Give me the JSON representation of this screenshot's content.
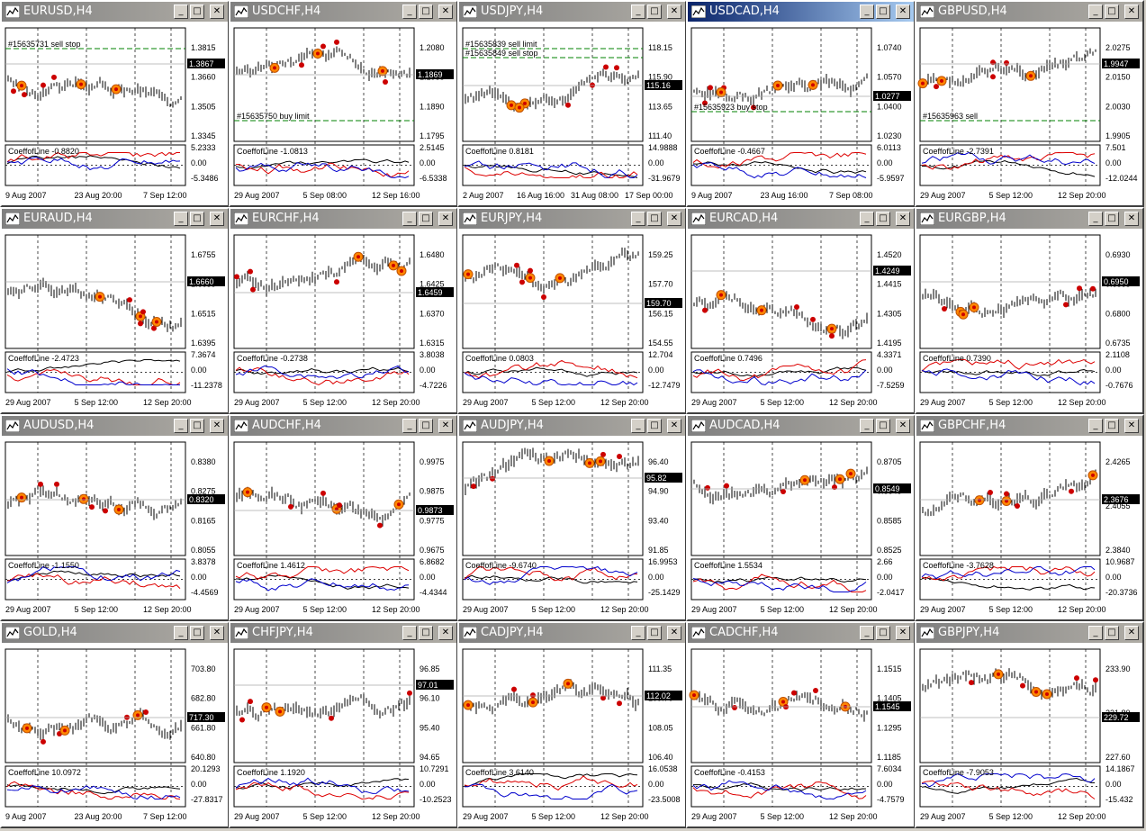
{
  "charts": [
    {
      "title": "EURUSD,H4",
      "active": false,
      "price_ticks": [
        "1.3815",
        "1.3660",
        "1.3505",
        "1.3345"
      ],
      "price_badge": "1.3867",
      "ind_ticks": [
        "5.2333",
        "0.00",
        "-5.3486"
      ],
      "ind_label": "CoeffofLine -0.8820",
      "dates": [
        "9 Aug 2007",
        "23 Aug 20:00",
        "7 Sep 12:00"
      ],
      "order_labels": [
        "#15635731 sell stop"
      ]
    },
    {
      "title": "USDCHF,H4",
      "active": false,
      "price_ticks": [
        "1.2080",
        "1.1985",
        "1.1890",
        "1.1795"
      ],
      "price_badge": "1.1869",
      "ind_ticks": [
        "2.5145",
        "0.00",
        "-6.5338"
      ],
      "ind_label": "CoeffofLine -1.0813",
      "dates": [
        "29 Aug 2007",
        "5 Sep 08:00",
        "12 Sep 16:00"
      ],
      "order_labels": [
        "#15635750 buy limit"
      ]
    },
    {
      "title": "USDJPY,H4",
      "active": false,
      "price_ticks": [
        "118.15",
        "115.90",
        "113.65",
        "111.40"
      ],
      "price_badge": "115.16",
      "ind_ticks": [
        "14.9888",
        "0.00",
        "-31.9679"
      ],
      "ind_label": "CoeffofLine 0.8181",
      "dates": [
        "2 Aug 2007",
        "16 Aug 16:00",
        "31 Aug 08:00",
        "17 Sep 00:00"
      ],
      "order_labels": [
        "#15635839 sell limit",
        "#15635849 sell stop"
      ]
    },
    {
      "title": "USDCAD,H4",
      "active": true,
      "price_ticks": [
        "1.0740",
        "1.0570",
        "1.0400",
        "1.0230"
      ],
      "price_badge": "1.0277",
      "ind_ticks": [
        "6.0113",
        "0.00",
        "-5.9597"
      ],
      "ind_label": "CoeffofLine -0.4667",
      "dates": [
        "9 Aug 2007",
        "23 Aug 16:00",
        "7 Sep 08:00"
      ],
      "order_labels": [
        "#15635923 buy stop"
      ]
    },
    {
      "title": "GBPUSD,H4",
      "active": false,
      "price_ticks": [
        "2.0275",
        "2.0150",
        "2.0030",
        "1.9905"
      ],
      "price_badge": "1.9947",
      "ind_ticks": [
        "7.501",
        "0.00",
        "-12.0244"
      ],
      "ind_label": "CoeffofLine -2.7391",
      "dates": [
        "29 Aug 2007",
        "5 Sep 12:00",
        "12 Sep 20:00"
      ],
      "order_labels": [
        "#15635963 sell"
      ]
    },
    {
      "title": "EURAUD,H4",
      "active": false,
      "price_ticks": [
        "1.6755",
        "1.6635",
        "1.6515",
        "1.6395"
      ],
      "price_badge": "1.6660",
      "ind_ticks": [
        "7.3674",
        "0.00",
        "-11.2378"
      ],
      "ind_label": "CoeffofLine -2.4723",
      "dates": [
        "29 Aug 2007",
        "5 Sep 12:00",
        "12 Sep 20:00"
      ],
      "order_labels": []
    },
    {
      "title": "EURCHF,H4",
      "active": false,
      "price_ticks": [
        "1.6480",
        "1.6425",
        "1.6370",
        "1.6315"
      ],
      "price_badge": "1.6459",
      "ind_ticks": [
        "3.8038",
        "0.00",
        "-4.7226"
      ],
      "ind_label": "CoeffofLine -0.2738",
      "dates": [
        "29 Aug 2007",
        "5 Sep 12:00",
        "12 Sep 20:00"
      ],
      "order_labels": []
    },
    {
      "title": "EURJPY,H4",
      "active": false,
      "price_ticks": [
        "159.25",
        "157.70",
        "156.15",
        "154.55"
      ],
      "price_badge": "159.70",
      "ind_ticks": [
        "12.704",
        "0.00",
        "-12.7479"
      ],
      "ind_label": "CoeffofLine 0.0803",
      "dates": [
        "29 Aug 2007",
        "5 Sep 12:00",
        "12 Sep 20:00"
      ],
      "order_labels": []
    },
    {
      "title": "EURCAD,H4",
      "active": false,
      "price_ticks": [
        "1.4520",
        "1.4415",
        "1.4305",
        "1.4195"
      ],
      "price_badge": "1.4249",
      "ind_ticks": [
        "4.3371",
        "0.00",
        "-7.5259"
      ],
      "ind_label": "CoeffofLine 0.7496",
      "dates": [
        "29 Aug 2007",
        "5 Sep 12:00",
        "12 Sep 20:00"
      ],
      "order_labels": []
    },
    {
      "title": "EURGBP,H4",
      "active": false,
      "price_ticks": [
        "0.6930",
        "0.6865",
        "0.6800",
        "0.6735"
      ],
      "price_badge": "0.6950",
      "ind_ticks": [
        "2.1108",
        "0.00",
        "-0.7676"
      ],
      "ind_label": "CoeffofLine 0.7390",
      "dates": [
        "29 Aug 2007",
        "5 Sep 12:00",
        "12 Sep 20:00"
      ],
      "order_labels": []
    },
    {
      "title": "AUDUSD,H4",
      "active": false,
      "price_ticks": [
        "0.8380",
        "0.8275",
        "0.8165",
        "0.8055"
      ],
      "price_badge": "0.8320",
      "ind_ticks": [
        "3.8378",
        "0.00",
        "-4.4569"
      ],
      "ind_label": "CoeffofLine -1.1550",
      "dates": [
        "29 Aug 2007",
        "5 Sep 12:00",
        "12 Sep 20:00"
      ],
      "order_labels": []
    },
    {
      "title": "AUDCHF,H4",
      "active": false,
      "price_ticks": [
        "0.9975",
        "0.9875",
        "0.9775",
        "0.9675"
      ],
      "price_badge": "0.9873",
      "ind_ticks": [
        "6.8682",
        "0.00",
        "-4.4344"
      ],
      "ind_label": "CoeffofLine 1.4612",
      "dates": [
        "29 Aug 2007",
        "5 Sep 12:00",
        "12 Sep 20:00"
      ],
      "order_labels": []
    },
    {
      "title": "AUDJPY,H4",
      "active": false,
      "price_ticks": [
        "96.40",
        "94.90",
        "93.40",
        "91.85"
      ],
      "price_badge": "95.82",
      "ind_ticks": [
        "16.9953",
        "0.00",
        "-25.1429"
      ],
      "ind_label": "CoeffofLine -9.6740",
      "dates": [
        "29 Aug 2007",
        "5 Sep 12:00",
        "12 Sep 20:00"
      ],
      "order_labels": []
    },
    {
      "title": "AUDCAD,H4",
      "active": false,
      "price_ticks": [
        "0.8705",
        "0.8645",
        "0.8585",
        "0.8525"
      ],
      "price_badge": "0.8549",
      "ind_ticks": [
        "2.66",
        "0.00",
        "-2.0417"
      ],
      "ind_label": "CoeffofLine 1.5534",
      "dates": [
        "29 Aug 2007",
        "5 Sep 12:00",
        "12 Sep 20:00"
      ],
      "order_labels": []
    },
    {
      "title": "GBPCHF,H4",
      "active": false,
      "price_ticks": [
        "2.4265",
        "2.4055",
        "2.3840"
      ],
      "price_badge": "2.3676",
      "ind_ticks": [
        "10.9687",
        "0.00",
        "-20.3736"
      ],
      "ind_label": "CoeffofLine -3.7628",
      "dates": [
        "29 Aug 2007",
        "5 Sep 12:00",
        "12 Sep 20:00"
      ],
      "order_labels": []
    },
    {
      "title": "GOLD,H4",
      "active": false,
      "price_ticks": [
        "703.80",
        "682.80",
        "661.80",
        "640.80"
      ],
      "price_badge": "717.30",
      "ind_ticks": [
        "20.1293",
        "0.00",
        "-27.8317"
      ],
      "ind_label": "CoeffofLine 10.0972",
      "dates": [
        "9 Aug 2007",
        "23 Aug 20:00",
        "7 Sep 12:00"
      ],
      "order_labels": []
    },
    {
      "title": "CHFJPY,H4",
      "active": false,
      "price_ticks": [
        "96.85",
        "96.10",
        "95.40",
        "94.65"
      ],
      "price_badge": "97.01",
      "ind_ticks": [
        "10.7291",
        "0.00",
        "-10.2523"
      ],
      "ind_label": "CoeffofLine 1.1920",
      "dates": [
        "29 Aug 2007",
        "5 Sep 12:00",
        "12 Sep 20:00"
      ],
      "order_labels": []
    },
    {
      "title": "CADJPY,H4",
      "active": false,
      "price_ticks": [
        "111.35",
        "109.70",
        "108.05",
        "106.40"
      ],
      "price_badge": "112.02",
      "ind_ticks": [
        "16.0538",
        "0.00",
        "-23.5008"
      ],
      "ind_label": "CoeffofLine 3.6140",
      "dates": [
        "29 Aug 2007",
        "5 Sep 12:00",
        "12 Sep 20:00"
      ],
      "order_labels": []
    },
    {
      "title": "CADCHF,H4",
      "active": false,
      "price_ticks": [
        "1.1515",
        "1.1405",
        "1.1295",
        "1.1185"
      ],
      "price_badge": "1.1545",
      "ind_ticks": [
        "7.6034",
        "0.00",
        "-4.7579"
      ],
      "ind_label": "CoeffofLine -0.4153",
      "dates": [
        "29 Aug 2007",
        "5 Sep 12:00",
        "12 Sep 20:00"
      ],
      "order_labels": []
    },
    {
      "title": "GBPJPY,H4",
      "active": false,
      "price_ticks": [
        "233.90",
        "231.80",
        "227.60"
      ],
      "price_badge": "229.72",
      "ind_ticks": [
        "14.1867",
        "0.00",
        "-15.432"
      ],
      "ind_label": "CoeffofLine -7.9053",
      "dates": [
        "29 Aug 2007",
        "5 Sep 12:00",
        "12 Sep 20:00"
      ],
      "order_labels": []
    }
  ],
  "colors": {
    "active_title": "#0a246a",
    "inactive_title": "#808080",
    "up_marker": "#cc0000",
    "down_marker": "#ff8800",
    "line_red": "#dd0000",
    "line_blue": "#0000cc",
    "order_line": "#008000"
  }
}
